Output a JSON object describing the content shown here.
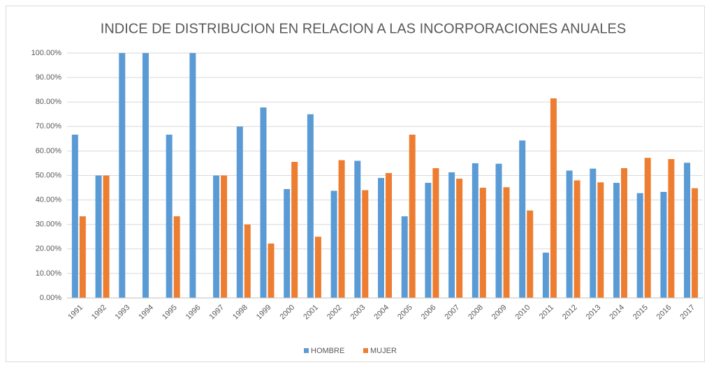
{
  "chart_data": {
    "type": "bar",
    "title": "INDICE DE DISTRIBUCION EN RELACION A LAS INCORPORACIONES ANUALES",
    "categories": [
      "1991",
      "1992",
      "1993",
      "1994",
      "1995",
      "1996",
      "1997",
      "1998",
      "1999",
      "2000",
      "2001",
      "2002",
      "2003",
      "2004",
      "2005",
      "2006",
      "2007",
      "2008",
      "2009",
      "2010",
      "2011",
      "2012",
      "2013",
      "2014",
      "2015",
      "2016",
      "2017"
    ],
    "series": [
      {
        "name": "HOMBRE",
        "color": "#5b9bd5",
        "values": [
          66.67,
          50,
          100,
          100,
          66.67,
          100,
          50,
          70,
          77.78,
          44.44,
          75,
          43.75,
          56,
          49,
          33.33,
          47,
          51.3,
          55,
          54.8,
          64.3,
          18.5,
          52,
          52.8,
          47,
          42.8,
          43.3,
          55.2
        ]
      },
      {
        "name": "MUJER",
        "color": "#ed7d31",
        "values": [
          33.33,
          50,
          0,
          0,
          33.33,
          0,
          50,
          30,
          22.22,
          55.56,
          25,
          56.25,
          44,
          51,
          66.67,
          53,
          48.7,
          45,
          45.2,
          35.7,
          81.5,
          48,
          47.2,
          53,
          57.2,
          56.7,
          44.8
        ]
      }
    ],
    "ylim": [
      0,
      100
    ],
    "yticks": [
      {
        "value": 0,
        "label": "0.00%"
      },
      {
        "value": 10,
        "label": "10.00%"
      },
      {
        "value": 20,
        "label": "20.00%"
      },
      {
        "value": 30,
        "label": "30.00%"
      },
      {
        "value": 40,
        "label": "40.00%"
      },
      {
        "value": 50,
        "label": "50.00%"
      },
      {
        "value": 60,
        "label": "60.00%"
      },
      {
        "value": 70,
        "label": "70.00%"
      },
      {
        "value": 80,
        "label": "80.00%"
      },
      {
        "value": 90,
        "label": "90.00%"
      },
      {
        "value": 100,
        "label": "100.00%"
      }
    ],
    "grid": true,
    "legend": "bottom"
  }
}
